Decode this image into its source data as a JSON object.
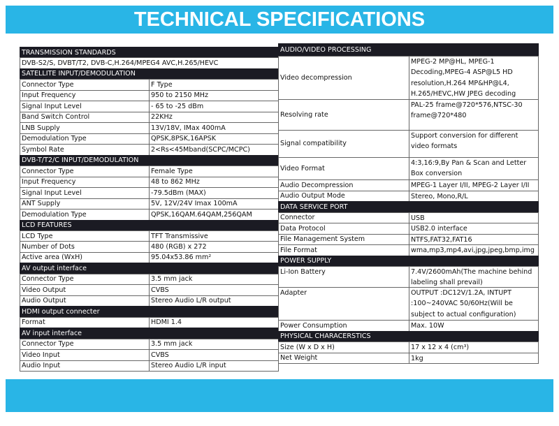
{
  "banner": {
    "title": "TECHNICAL SPECIFICATIONS"
  },
  "left": [
    {
      "title": "TRANSMISSION STANDARDS",
      "text": "DVB-S2/S, DVBT/T2, DVB-C,H.264/MPEG4 AVC,H.265/HEVC"
    },
    {
      "title": "SATELLITE INPUT/DEMODULATION",
      "rows": [
        [
          "Connector Type",
          "F Type"
        ],
        [
          "Input Frequency",
          "950 to 2150 MHz"
        ],
        [
          "Signal Input Level",
          "- 65 to -25 dBm"
        ],
        [
          "Band Switch Control",
          "22KHz"
        ],
        [
          "LNB Supply",
          "13V/18V, IMax 400mA"
        ],
        [
          "Demodulation Type",
          "QPSK,8PSK,16APSK"
        ],
        [
          "Symbol Rate",
          "2<Rs<45Mband(SCPC/MCPC)"
        ]
      ]
    },
    {
      "title": "DVB-T/T2/C INPUT/DEMODULATION",
      "rows": [
        [
          "Connector Type",
          "Female Type"
        ],
        [
          "Input Frequency",
          "48 to 862 MHz"
        ],
        [
          "Signal Input Level",
          "-79.5dBm (MAX)"
        ],
        [
          "ANT Supply",
          "5V, 12V/24V Imax 100mA"
        ],
        [
          "Demodulation Type",
          "QPSK,16QAM.64QAM,256QAM"
        ]
      ]
    },
    {
      "title": "LCD FEATURES",
      "rows": [
        [
          "LCD Type",
          "TFT Transmissive"
        ],
        [
          "Number of Dots",
          "480 (RGB) x 272"
        ],
        [
          "Active area (WxH)",
          "95.04x53.86 mm²"
        ]
      ]
    },
    {
      "title": "AV output interface",
      "rows": [
        [
          "Connector Type",
          "3.5 mm jack"
        ],
        [
          "Video Output",
          "CVBS"
        ],
        [
          "Audio Output",
          "Stereo Audio L/R output"
        ]
      ]
    },
    {
      "title": "HDMI output connecter",
      "rows": [
        [
          "Format",
          "HDMI 1.4"
        ]
      ]
    },
    {
      "title": "AV input interface",
      "rows": [
        [
          "Connector Type",
          "3.5 mm jack"
        ],
        [
          "Video Input",
          "CVBS"
        ],
        [
          "Audio Input",
          "Stereo Audio L/R input"
        ]
      ]
    }
  ],
  "right": [
    {
      "title": "AUDIO/VIDEO PROCESSING",
      "rows": [
        [
          "Video decompression",
          "MPEG-2 MP@HL, MPEG-1 Decoding,MPEG-4 ASP@L5 HD resolution,H.264 MP&HP@L4, H.265/HEVC,HW JPEG decoding"
        ],
        [
          "Resolving rate",
          "PAL-25 frame@720*576,NTSC-30 frame@720*480"
        ],
        [
          "Signal compatibility",
          "Support conversion for different video formats"
        ],
        [
          "Video Format",
          "4:3,16:9,By Pan & Scan and Letter Box conversion"
        ],
        [
          "Audio Decompression",
          "MPEG-1 Layer I/II, MPEG-2 Layer I/II"
        ],
        [
          "Audio Output Mode",
          "Stereo, Mono,R/L"
        ]
      ]
    },
    {
      "title": "DATA SERVICE PORT",
      "rows": [
        [
          "Connector",
          "USB"
        ],
        [
          "Data Protocol",
          "USB2.0 interface"
        ],
        [
          "File Management System",
          "NTFS,FAT32,FAT16"
        ],
        [
          "File Format",
          "wma,mp3,mp4,avi,jpg,jpeg,bmp,img"
        ]
      ]
    },
    {
      "title": "POWER SUPPLY",
      "rows": [
        [
          "Li-Ion Battery",
          "7.4V/2600mAh(The machine behind labeling shall prevail)"
        ],
        [
          "Adapter",
          "OUTPUT :DC12V/1.2A, INTUPT :100~240VAC 50/60Hz(Will be subject to actual configuration)"
        ],
        [
          "Power Consumption",
          "Max. 10W"
        ]
      ]
    },
    {
      "title": "PHYSICAL CHARACERSTICS",
      "rows": [
        [
          "Size (W x D x H)",
          "17 x 12 x 4 (cm³)"
        ],
        [
          "Net Weight",
          "1kg"
        ]
      ]
    }
  ]
}
